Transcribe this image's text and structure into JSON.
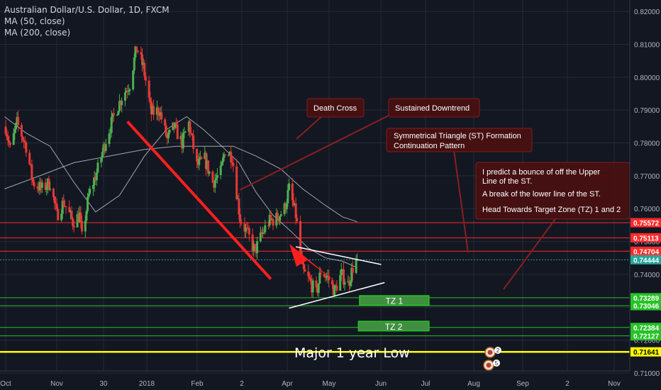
{
  "header": {
    "title": "Australian Dollar/U.S. Dollar, 1D, FXCM",
    "ma50": "MA (50, close)",
    "ma200": "MA (200, close)"
  },
  "colors": {
    "background": "#131722",
    "grid": "#252a37",
    "candle_up": "#4caf50",
    "candle_down": "#e53935",
    "resistance": "#ff2a2a",
    "target": "#27c227",
    "major_low": "#ffff00",
    "annotation_bg": "#4a1010",
    "annotation_border": "#8a1f1f",
    "arrow": "#ff1f1f"
  },
  "chart_data": {
    "type": "candlestick",
    "symbol": "Australian Dollar/U.S. Dollar, 1D, FXCM",
    "y_axis": {
      "range": [
        0.7048,
        0.8235
      ],
      "ticks": [
        "0.82000",
        "0.81000",
        "0.80000",
        "0.79000",
        "0.78000",
        "0.77000",
        "0.76000",
        "0.75000",
        "0.74000",
        "0.73000",
        "0.72000",
        "0.71000"
      ]
    },
    "x_axis": {
      "labels": [
        "Oct",
        "Nov",
        "30",
        "2018",
        "Feb",
        "2",
        "Apr",
        "May",
        "Jun",
        "Jul",
        "Aug",
        "Sep",
        "2",
        "Nov"
      ]
    },
    "price_lines": [
      {
        "value": 0.75572,
        "label": "0.75572",
        "kind": "resistance"
      },
      {
        "value": 0.75113,
        "label": "0.75113",
        "kind": "resistance"
      },
      {
        "value": 0.74704,
        "label": "0.74704",
        "kind": "resistance"
      },
      {
        "value": 0.74444,
        "label": "0.74444",
        "kind": "current"
      },
      {
        "value": 0.73289,
        "label": "0.73289",
        "kind": "target"
      },
      {
        "value": 0.73046,
        "label": "0.73046",
        "kind": "target"
      },
      {
        "value": 0.72384,
        "label": "0.72384",
        "kind": "target"
      },
      {
        "value": 0.72127,
        "label": "0.72127",
        "kind": "target"
      },
      {
        "value": 0.71641,
        "label": "0.71641",
        "kind": "major_low"
      }
    ],
    "close_path": [
      [
        "2017-10-02",
        0.785
      ],
      [
        "2017-10-06",
        0.778
      ],
      [
        "2017-10-12",
        0.786
      ],
      [
        "2017-10-20",
        0.779
      ],
      [
        "2017-10-26",
        0.768
      ],
      [
        "2017-11-03",
        0.766
      ],
      [
        "2017-11-10",
        0.768
      ],
      [
        "2017-11-16",
        0.758
      ],
      [
        "2017-11-22",
        0.762
      ],
      [
        "2017-11-30",
        0.756
      ],
      [
        "2017-12-06",
        0.758
      ],
      [
        "2017-12-08",
        0.751
      ],
      [
        "2017-12-14",
        0.764
      ],
      [
        "2017-12-22",
        0.772
      ],
      [
        "2017-12-29",
        0.781
      ],
      [
        "2018-01-05",
        0.788
      ],
      [
        "2018-01-12",
        0.794
      ],
      [
        "2018-01-19",
        0.798
      ],
      [
        "2018-01-25",
        0.809
      ],
      [
        "2018-01-31",
        0.803
      ],
      [
        "2018-02-07",
        0.789
      ],
      [
        "2018-02-14",
        0.79
      ],
      [
        "2018-02-21",
        0.781
      ],
      [
        "2018-02-27",
        0.785
      ],
      [
        "2018-03-06",
        0.78
      ],
      [
        "2018-03-12",
        0.786
      ],
      [
        "2018-03-19",
        0.773
      ],
      [
        "2018-03-26",
        0.775
      ],
      [
        "2018-04-02",
        0.768
      ],
      [
        "2018-04-09",
        0.771
      ],
      [
        "2018-04-13",
        0.778
      ],
      [
        "2018-04-19",
        0.776
      ],
      [
        "2018-04-26",
        0.757
      ],
      [
        "2018-05-03",
        0.752
      ],
      [
        "2018-05-09",
        0.747
      ],
      [
        "2018-05-15",
        0.752
      ],
      [
        "2018-05-21",
        0.756
      ],
      [
        "2018-05-28",
        0.757
      ],
      [
        "2018-06-04",
        0.76
      ],
      [
        "2018-06-08",
        0.766
      ],
      [
        "2018-06-14",
        0.758
      ],
      [
        "2018-06-20",
        0.741
      ],
      [
        "2018-06-26",
        0.738
      ],
      [
        "2018-07-02",
        0.734
      ],
      [
        "2018-07-06",
        0.741
      ],
      [
        "2018-07-12",
        0.739
      ],
      [
        "2018-07-18",
        0.735
      ],
      [
        "2018-07-24",
        0.74
      ],
      [
        "2018-07-30",
        0.737
      ],
      [
        "2018-08-03",
        0.742
      ],
      [
        "2018-08-07",
        0.7444
      ]
    ],
    "moving_averages": [
      {
        "name": "MA (50, close)",
        "color": "#d1d4dc",
        "points": [
          [
            "2017-10-01",
            0.788
          ],
          [
            "2017-10-20",
            0.783
          ],
          [
            "2017-11-10",
            0.779
          ],
          [
            "2017-12-01",
            0.768
          ],
          [
            "2017-12-20",
            0.759
          ],
          [
            "2018-01-10",
            0.764
          ],
          [
            "2018-02-01",
            0.776
          ],
          [
            "2018-02-20",
            0.784
          ],
          [
            "2018-03-10",
            0.788
          ],
          [
            "2018-03-25",
            0.784
          ],
          [
            "2018-04-10",
            0.779
          ],
          [
            "2018-04-25",
            0.774
          ],
          [
            "2018-05-10",
            0.765
          ],
          [
            "2018-05-25",
            0.758
          ],
          [
            "2018-06-10",
            0.753
          ],
          [
            "2018-06-25",
            0.748
          ],
          [
            "2018-07-10",
            0.745
          ],
          [
            "2018-07-25",
            0.744
          ],
          [
            "2018-08-07",
            0.742
          ]
        ]
      },
      {
        "name": "MA (200, close)",
        "color": "#d1d4dc",
        "points": [
          [
            "2017-10-01",
            0.766
          ],
          [
            "2017-11-01",
            0.77
          ],
          [
            "2017-12-01",
            0.774
          ],
          [
            "2018-01-01",
            0.776
          ],
          [
            "2018-02-01",
            0.778
          ],
          [
            "2018-03-01",
            0.779
          ],
          [
            "2018-04-01",
            0.779
          ],
          [
            "2018-04-20",
            0.779
          ],
          [
            "2018-05-10",
            0.776
          ],
          [
            "2018-06-01",
            0.772
          ],
          [
            "2018-06-20",
            0.766
          ],
          [
            "2018-07-10",
            0.761
          ],
          [
            "2018-07-25",
            0.7575
          ],
          [
            "2018-08-07",
            0.756
          ]
        ]
      }
    ],
    "annotations": {
      "death_cross": "Death Cross",
      "sustained_downtrend": "Sustained Downtrend",
      "triangle_line1": "Symmetrical Triangle (ST) Formation",
      "triangle_line2": "Continuation Pattern",
      "predict_line1": "I predict a bounce of off the Upper",
      "predict_line2": "Line of the ST.",
      "predict_line3": "A break of the lower line of the ST.",
      "predict_line4": "Head Towards Target Zone (TZ) 1 and 2",
      "tz1": "TZ 1",
      "tz2": "TZ 2",
      "major_low": "Major 1 year Low",
      "event_badges": [
        "2",
        "5"
      ]
    }
  }
}
